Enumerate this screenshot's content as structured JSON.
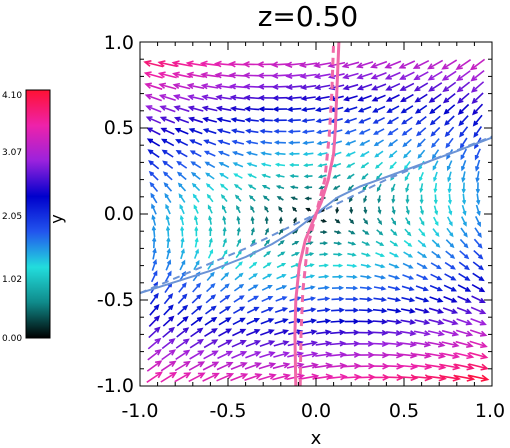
{
  "chart_data": {
    "type": "quiver",
    "title": "z=0.50",
    "xlabel": "x",
    "ylabel": "",
    "xlim": [
      -1.0,
      1.0
    ],
    "ylim": [
      -1.0,
      1.0
    ],
    "xticks": [
      "-1.0",
      "-0.5",
      "0.0",
      "0.5",
      "1.0"
    ],
    "yticks": [
      "-1.0",
      "-0.5",
      "0.0",
      "0.5",
      "1.0"
    ],
    "grid": false,
    "field": {
      "grid_x": {
        "start": -0.92,
        "step": 0.08,
        "count": 24
      },
      "grid_y": {
        "start": -0.95,
        "step": 0.065,
        "count": 29
      },
      "strain": {
        "axx": 0.28,
        "axy": -1.75,
        "ayx": -0.75,
        "ayy": -0.28
      },
      "magnitude_range": [
        0.0,
        4.1
      ]
    },
    "curves": [
      {
        "style": "solid",
        "color": "#6b93d6",
        "points": [
          [
            -1.0,
            -0.46
          ],
          [
            -0.8,
            -0.395
          ],
          [
            -0.6,
            -0.33
          ],
          [
            -0.4,
            -0.25
          ],
          [
            -0.25,
            -0.175
          ],
          [
            -0.12,
            -0.095
          ],
          [
            -0.05,
            -0.04
          ],
          [
            0.0,
            0.0
          ],
          [
            0.05,
            0.04
          ],
          [
            0.12,
            0.095
          ],
          [
            0.25,
            0.16
          ],
          [
            0.4,
            0.215
          ],
          [
            0.6,
            0.29
          ],
          [
            0.8,
            0.365
          ],
          [
            1.0,
            0.445
          ]
        ]
      },
      {
        "style": "dashed",
        "color": "#6b93d6",
        "points": [
          [
            -1.0,
            -0.46
          ],
          [
            -0.7,
            -0.33
          ],
          [
            -0.4,
            -0.2
          ],
          [
            -0.2,
            -0.1
          ],
          [
            0.0,
            0.0
          ],
          [
            0.2,
            0.1
          ],
          [
            0.4,
            0.2
          ],
          [
            0.7,
            0.33
          ],
          [
            1.0,
            0.45
          ]
        ]
      },
      {
        "style": "solid",
        "color": "#f06aa8",
        "points": [
          [
            -0.115,
            -1.0
          ],
          [
            -0.12,
            -0.7
          ],
          [
            -0.115,
            -0.5
          ],
          [
            -0.095,
            -0.3
          ],
          [
            -0.06,
            -0.15
          ],
          [
            -0.02,
            -0.05
          ],
          [
            0.0,
            0.0
          ],
          [
            0.03,
            0.07
          ],
          [
            0.07,
            0.2
          ],
          [
            0.1,
            0.35
          ],
          [
            0.11,
            0.5
          ],
          [
            0.12,
            0.75
          ],
          [
            0.13,
            1.0
          ]
        ]
      },
      {
        "style": "dashed",
        "color": "#f06aa8",
        "points": [
          [
            -0.09,
            -1.0
          ],
          [
            -0.085,
            -0.7
          ],
          [
            -0.075,
            -0.45
          ],
          [
            -0.05,
            -0.2
          ],
          [
            0.0,
            0.0
          ],
          [
            0.05,
            0.2
          ],
          [
            0.075,
            0.45
          ],
          [
            0.09,
            0.7
          ],
          [
            0.1,
            1.0
          ]
        ]
      }
    ]
  },
  "colorbar": {
    "label": "y",
    "ticks": [
      "0.00",
      "1.02",
      "2.05",
      "3.07",
      "4.10"
    ],
    "stops": [
      "#000000",
      "#0f8a8a",
      "#22dddd",
      "#2255ee",
      "#0000cc",
      "#9a22dd",
      "#ee22aa",
      "#ff1133"
    ]
  }
}
